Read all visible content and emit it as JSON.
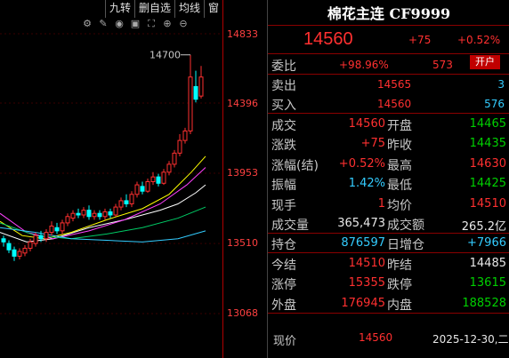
{
  "toolbar": {
    "items": [
      "九转",
      "删自选",
      "均线",
      "窗"
    ]
  },
  "chart": {
    "price_labels": [
      "14833",
      "14396",
      "13953",
      "13510",
      "13068"
    ],
    "peak_label": "14700"
  },
  "quote": {
    "title": "棉花主连 CF9999",
    "last": "14560",
    "change": "+75",
    "change_pct": "+0.52%",
    "weibi_label": "委比",
    "weibi_pct": "+98.96%",
    "weibi_val": "573",
    "open_btn": "开户",
    "sell_label": "卖出",
    "sell_price": "14565",
    "sell_vol": "3",
    "buy_label": "买入",
    "buy_price": "14560",
    "buy_vol": "576",
    "rows": [
      {
        "l1": "成交",
        "v1": "14560",
        "l2": "开盘",
        "v2": "14465"
      },
      {
        "l1": "涨跌",
        "v1": "+75",
        "l2": "昨收",
        "v2": "14435"
      },
      {
        "l1": "涨幅(结)",
        "v1": "+0.52%",
        "l2": "最高",
        "v2": "14630"
      },
      {
        "l1": "振幅",
        "v1": "1.42%",
        "l2": "最低",
        "v2": "14425"
      },
      {
        "l1": "现手",
        "v1": "1",
        "l2": "均价",
        "v2": "14510"
      },
      {
        "l1": "成交量",
        "v1": "365,473",
        "l2": "成交额",
        "v2": "265.2亿"
      },
      {
        "l1": "持仓",
        "v1": "876597",
        "l2": "日增仓",
        "v2": "+7966"
      },
      {
        "l1": "今结",
        "v1": "14510",
        "l2": "昨结",
        "v2": "14485"
      },
      {
        "l1": "涨停",
        "v1": "15355",
        "l2": "跌停",
        "v2": "13615"
      },
      {
        "l1": "外盘",
        "v1": "176945",
        "l2": "内盘",
        "v2": "188528"
      }
    ],
    "tick_label": "现价",
    "tick_price": "14560",
    "tick_date": "2025-12-30,二"
  }
}
